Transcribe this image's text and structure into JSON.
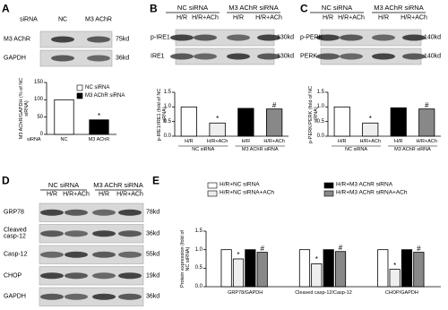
{
  "panels": [
    {
      "letter": "A",
      "header_label": "siRNA",
      "lanes": [
        "NC",
        "M3 AChR"
      ],
      "rows": [
        {
          "label": "M3 AChR",
          "size": "75kd"
        },
        {
          "label": "GAPDH",
          "size": "36kd"
        }
      ]
    },
    {
      "letter": "B",
      "groups": [
        "NC siRNA",
        "M3 AChR siRNA"
      ],
      "lanes": [
        "H/R",
        "H/R+ACh",
        "H/R",
        "H/R+ACh"
      ],
      "rows": [
        {
          "label": "p-IRE1",
          "size": "130kd"
        },
        {
          "label": "IRE1",
          "size": "130kd"
        }
      ]
    },
    {
      "letter": "C",
      "groups": [
        "NC siRNA",
        "M3 AChR siRNA"
      ],
      "lanes": [
        "H/R",
        "H/R+ACh",
        "H/R",
        "H/R+ACh"
      ],
      "rows": [
        {
          "label": "p-PERK",
          "size": "140kd"
        },
        {
          "label": "PERK",
          "size": "140kd"
        }
      ]
    },
    {
      "letter": "D",
      "groups": [
        "NC siRNA",
        "M3 AChR siRNA"
      ],
      "lanes": [
        "H/R",
        "H/R+ACh",
        "H/R",
        "H/R+ACh"
      ],
      "rows": [
        {
          "label": "GRP78",
          "size": "78kd"
        },
        {
          "label": "Cleaved casp-12",
          "size": "36kd"
        },
        {
          "label": "Casp-12",
          "size": "55kd"
        },
        {
          "label": "CHOP",
          "size": "19kd"
        },
        {
          "label": "GAPDH",
          "size": "36kd"
        }
      ]
    },
    {
      "letter": "E"
    }
  ],
  "chart_data": [
    {
      "type": "bar",
      "y_label": "M3 AChR/GAPDH (% of NC siRNA)",
      "category_axis_label": "siRNA",
      "categories": [
        "NC",
        "M3 AChR"
      ],
      "values": [
        100,
        42
      ],
      "colors": [
        "#ffffff",
        "#000000"
      ],
      "legend": [
        "NC siRNA",
        "M3 AChR siRNA"
      ],
      "annotations": [
        null,
        "*"
      ],
      "ylim": [
        0,
        150
      ],
      "yticks": [
        0,
        50,
        100,
        150
      ]
    },
    {
      "type": "bar",
      "y_label": "p-IRE1/IRE1 (fold of NC siRNA)",
      "categories": [
        "H/R",
        "H/R+ACh",
        "H/R",
        "H/R+ACh"
      ],
      "groups": [
        "NC siRNA",
        "M3 AChR siRNA"
      ],
      "values": [
        1.0,
        0.45,
        0.95,
        0.93
      ],
      "colors": [
        "#ffffff",
        "#eeeeee",
        "#000000",
        "#888888"
      ],
      "annotations": [
        null,
        "*",
        null,
        "#"
      ],
      "ylim": [
        0,
        1.5
      ],
      "yticks": [
        {
          "value": 0,
          "label": "0.0"
        },
        0.5,
        {
          "value": 1,
          "label": "1.0"
        },
        1.5
      ]
    },
    {
      "type": "bar",
      "y_label": "p-PERK/PERK (fold of NC siRNA)",
      "categories": [
        "H/R",
        "H/R+ACh",
        "H/R",
        "H/R+ACh"
      ],
      "groups": [
        "NC siRNA",
        "M3 AChR siRNA"
      ],
      "values": [
        1.0,
        0.45,
        0.97,
        0.93
      ],
      "colors": [
        "#ffffff",
        "#eeeeee",
        "#000000",
        "#888888"
      ],
      "annotations": [
        null,
        "*",
        null,
        "#"
      ],
      "ylim": [
        0,
        1.5
      ],
      "yticks": [
        {
          "value": 0,
          "label": "0.0"
        },
        0.5,
        {
          "value": 1,
          "label": "1.0"
        },
        1.5
      ]
    },
    {
      "type": "grouped_bar",
      "y_label": "Protein expression (fold of NC siRNA)",
      "categories": [
        "GRP78/GAPDH",
        "Cleaved casp-12/Casp-12",
        "CHOP/GAPDH"
      ],
      "series": [
        {
          "name": "H/R+NC siRNA",
          "color": "#ffffff",
          "values": [
            1.0,
            1.0,
            1.0
          ]
        },
        {
          "name": "H/R+NC siRNA+ACh",
          "color": "#eeeeee",
          "values": [
            0.75,
            0.62,
            0.47
          ],
          "annotations": [
            "*",
            "*",
            "*"
          ]
        },
        {
          "name": "H/R+M3 AChR siRNA",
          "color": "#000000",
          "values": [
            1.0,
            1.0,
            1.0
          ]
        },
        {
          "name": "H/R+M3 AChR siRNA+ACh",
          "color": "#888888",
          "values": [
            0.93,
            0.95,
            0.93
          ],
          "annotations": [
            "#",
            "#",
            "#"
          ]
        }
      ],
      "ylim": [
        0,
        1.5
      ],
      "yticks": [
        {
          "value": 0,
          "label": "0.0"
        },
        0.5,
        {
          "value": 1,
          "label": "1.0"
        },
        1.5
      ]
    }
  ]
}
